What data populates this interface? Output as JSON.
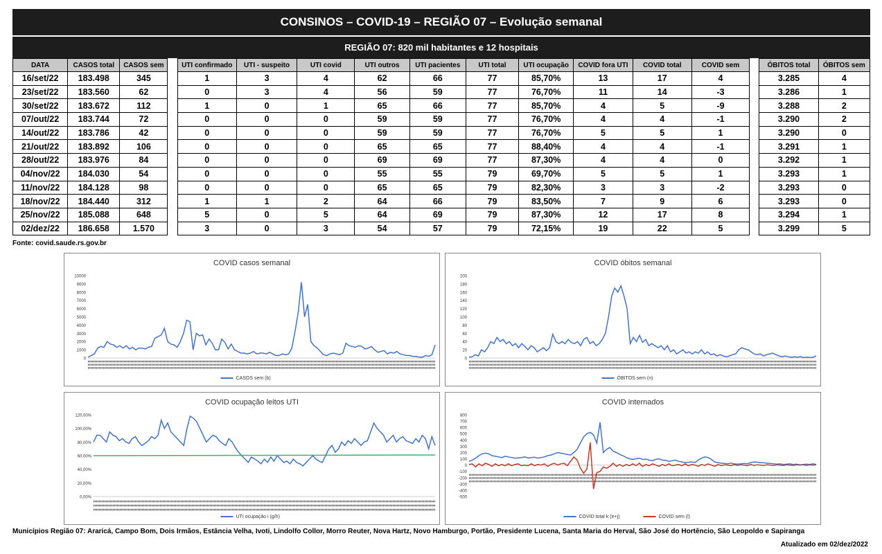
{
  "header": {
    "title": "CONSINOS – COVID-19 – REGIÃO 07 – Evolução semanal",
    "subtitle": "REGIÃO 07: 820 mil habitantes e 12 hospitais"
  },
  "table": {
    "columns": [
      "DATA",
      "CASOS total",
      "CASOS sem",
      "UTI confirmado",
      "UTI - suspeito",
      "UTI covid",
      "UTI outros",
      "UTI pacientes",
      "UTI total",
      "UTI ocupação",
      "COVID fora UTI",
      "COVID total",
      "COVID sem",
      "ÓBITOS total",
      "ÓBITOS sem"
    ],
    "rows": [
      [
        "16/set/22",
        "183.498",
        "345",
        "1",
        "3",
        "4",
        "62",
        "66",
        "77",
        "85,70%",
        "13",
        "17",
        "4",
        "3.285",
        "4"
      ],
      [
        "23/set/22",
        "183.560",
        "62",
        "0",
        "3",
        "4",
        "56",
        "59",
        "77",
        "76,70%",
        "11",
        "14",
        "-3",
        "3.286",
        "1"
      ],
      [
        "30/set/22",
        "183.672",
        "112",
        "1",
        "0",
        "1",
        "65",
        "66",
        "77",
        "85,70%",
        "4",
        "5",
        "-9",
        "3.288",
        "2"
      ],
      [
        "07/out/22",
        "183.744",
        "72",
        "0",
        "0",
        "0",
        "59",
        "59",
        "77",
        "76,70%",
        "4",
        "4",
        "-1",
        "3.290",
        "2"
      ],
      [
        "14/out/22",
        "183.786",
        "42",
        "0",
        "0",
        "0",
        "59",
        "59",
        "77",
        "76,70%",
        "5",
        "5",
        "1",
        "3.290",
        "0"
      ],
      [
        "21/out/22",
        "183.892",
        "106",
        "0",
        "0",
        "0",
        "65",
        "65",
        "77",
        "88,40%",
        "4",
        "4",
        "-1",
        "3.291",
        "1"
      ],
      [
        "28/out/22",
        "183.976",
        "84",
        "0",
        "0",
        "0",
        "69",
        "69",
        "77",
        "87,30%",
        "4",
        "4",
        "0",
        "3.292",
        "1"
      ],
      [
        "04/nov/22",
        "184.030",
        "54",
        "0",
        "0",
        "0",
        "55",
        "55",
        "79",
        "69,70%",
        "5",
        "5",
        "1",
        "3.293",
        "1"
      ],
      [
        "11/nov/22",
        "184.128",
        "98",
        "0",
        "0",
        "0",
        "65",
        "65",
        "79",
        "82,30%",
        "3",
        "3",
        "-2",
        "3.293",
        "0"
      ],
      [
        "18/nov/22",
        "184.440",
        "312",
        "1",
        "1",
        "2",
        "64",
        "66",
        "79",
        "83,50%",
        "7",
        "9",
        "6",
        "3.293",
        "0"
      ],
      [
        "25/nov/22",
        "185.088",
        "648",
        "5",
        "0",
        "5",
        "64",
        "69",
        "79",
        "87,30%",
        "12",
        "17",
        "8",
        "3.294",
        "1"
      ],
      [
        "02/dez/22",
        "186.658",
        "1.570",
        "3",
        "0",
        "3",
        "54",
        "57",
        "79",
        "72,15%",
        "19",
        "22",
        "5",
        "3.299",
        "5"
      ]
    ]
  },
  "source": "Fonte: covid.saude.rs.gov.br",
  "chart_data": [
    {
      "type": "line",
      "title": "COVID casos semanal",
      "ylim": [
        0,
        10000
      ],
      "yticks": [
        "0",
        "1000",
        "2000",
        "3000",
        "4000",
        "5000",
        "6000",
        "7000",
        "8000",
        "9000",
        "10000"
      ],
      "series": [
        {
          "name": "CASOS sem (b)",
          "color": "#4472c4",
          "values": [
            100,
            300,
            500,
            1200,
            1400,
            1300,
            2000,
            1700,
            1600,
            1300,
            1500,
            1200,
            1500,
            1100,
            1300,
            1000,
            1200,
            1200,
            1100,
            1300,
            1400,
            2400,
            2600,
            2800,
            3600,
            2000,
            1700,
            1600,
            1300,
            2000,
            3000,
            4600,
            4400,
            1000,
            3000,
            2700,
            2800,
            1600,
            2300,
            1800,
            1000,
            1000,
            2300,
            1900,
            1100,
            1700,
            1000,
            800,
            600,
            600,
            500,
            600,
            800,
            500,
            600,
            600,
            500,
            700,
            500,
            300,
            300,
            500,
            400,
            500,
            1200,
            3200,
            5500,
            9200,
            5000,
            6500,
            2000,
            1500,
            1200,
            800,
            400,
            300,
            500,
            600,
            500,
            400,
            600,
            1800,
            1500,
            1400,
            1300,
            1500,
            1400,
            1100,
            1200,
            1400,
            1000,
            700,
            800,
            900,
            500,
            700,
            600,
            800,
            500,
            400,
            300,
            300,
            200,
            200,
            100,
            100,
            300,
            200,
            400,
            1600
          ]
        }
      ]
    },
    {
      "type": "line",
      "title": "COVID óbitos semanal",
      "ylim": [
        0,
        200
      ],
      "yticks": [
        "0",
        "20",
        "40",
        "60",
        "80",
        "100",
        "120",
        "140",
        "160",
        "180",
        "200"
      ],
      "series": [
        {
          "name": "ÓBITOS sem (n)",
          "color": "#4472c4",
          "values": [
            2,
            3,
            8,
            5,
            20,
            15,
            25,
            40,
            35,
            50,
            40,
            45,
            35,
            40,
            30,
            35,
            25,
            35,
            28,
            20,
            30,
            25,
            15,
            20,
            25,
            18,
            25,
            58,
            40,
            35,
            40,
            35,
            45,
            38,
            35,
            40,
            30,
            45,
            50,
            35,
            40,
            30,
            35,
            45,
            60,
            100,
            150,
            170,
            160,
            175,
            150,
            120,
            35,
            50,
            40,
            55,
            38,
            45,
            30,
            35,
            30,
            25,
            30,
            20,
            30,
            15,
            20,
            10,
            15,
            20,
            12,
            15,
            10,
            15,
            12,
            20,
            10,
            15,
            8,
            10,
            5,
            8,
            5,
            3,
            5,
            8,
            10,
            20,
            25,
            22,
            20,
            15,
            10,
            8,
            10,
            5,
            8,
            10,
            12,
            8,
            5,
            3,
            5,
            3,
            2,
            3,
            2,
            3,
            1,
            2,
            1,
            2,
            5
          ]
        }
      ]
    },
    {
      "type": "line",
      "title": "COVID ocupação leitos UTI",
      "ylim": [
        0,
        120
      ],
      "yticks": [
        "0,00%",
        "20,00%",
        "40,00%",
        "60,00%",
        "80,00%",
        "100,00%",
        "120,00%"
      ],
      "series": [
        {
          "name": "UTI ocupação i (g/h)",
          "color": "#4472c4",
          "values": [
            80,
            90,
            90,
            85,
            80,
            95,
            90,
            88,
            82,
            85,
            80,
            78,
            85,
            88,
            80,
            75,
            78,
            82,
            88,
            85,
            90,
            112,
            100,
            108,
            95,
            90,
            85,
            80,
            75,
            100,
            118,
            115,
            110,
            100,
            90,
            80,
            85,
            90,
            88,
            82,
            78,
            75,
            85,
            80,
            72,
            65,
            60,
            55,
            50,
            58,
            55,
            52,
            48,
            55,
            50,
            58,
            52,
            60,
            55,
            50,
            52,
            48,
            55,
            50,
            48,
            45,
            50,
            55,
            60,
            55,
            52,
            50,
            60,
            70,
            75,
            65,
            70,
            80,
            75,
            82,
            78,
            85,
            80,
            75,
            80,
            82,
            95,
            108,
            100,
            95,
            90,
            80,
            85,
            90,
            80,
            85,
            88,
            82,
            80,
            78,
            85,
            80,
            90,
            85,
            70,
            88,
            75
          ]
        },
        {
          "name": "",
          "color": "#3cb371",
          "values": [
            60,
            61
          ]
        }
      ]
    },
    {
      "type": "line",
      "title": "COVID internados",
      "ylim": [
        -500,
        800
      ],
      "yticks": [
        "-500",
        "-400",
        "-300",
        "-200",
        "-100",
        "0",
        "100",
        "200",
        "300",
        "400",
        "500",
        "600",
        "700",
        "800"
      ],
      "series": [
        {
          "name": "COVID total k (e+j)",
          "color": "#4472c4",
          "values": [
            60,
            80,
            110,
            150,
            180,
            190,
            180,
            150,
            140,
            130,
            120,
            140,
            130,
            120,
            110,
            115,
            120,
            130,
            115,
            120,
            125,
            110,
            120,
            130,
            150,
            160,
            180,
            200,
            190,
            180,
            170,
            160,
            200,
            250,
            350,
            450,
            500,
            520,
            480,
            350,
            680,
            200,
            250,
            280,
            220,
            200,
            170,
            150,
            120,
            100,
            90,
            100,
            110,
            90,
            95,
            80,
            70,
            90,
            100,
            80,
            75,
            60,
            70,
            80,
            60,
            50,
            40,
            45,
            50,
            40,
            80,
            110,
            130,
            120,
            90,
            50,
            40,
            30,
            25,
            20,
            30,
            20,
            15,
            20,
            25,
            20,
            40,
            50,
            45,
            40,
            35,
            30,
            25,
            20,
            15,
            20,
            10,
            15,
            20,
            10,
            15,
            5,
            10,
            15,
            10,
            20,
            10
          ]
        },
        {
          "name": "COVID sem (l)",
          "color": "#c0392b",
          "values": [
            10,
            20,
            -30,
            20,
            -10,
            30,
            10,
            -20,
            20,
            -10,
            10,
            -10,
            20,
            -10,
            10,
            20,
            -10,
            0,
            -10,
            20,
            -10,
            10,
            0,
            20,
            -20,
            10,
            30,
            0,
            20,
            30,
            -10,
            60,
            130,
            80,
            -50,
            -130,
            -60,
            360,
            -380,
            -120,
            -100,
            -30,
            -50,
            -20,
            30,
            -20,
            10,
            -20,
            10,
            -10,
            20,
            -10,
            30,
            -20,
            10,
            -10,
            20,
            0,
            -20,
            10,
            -10,
            20,
            -10,
            0,
            10,
            -10,
            20,
            -10,
            10,
            0,
            -20,
            10,
            -5,
            20,
            0,
            -20,
            10,
            -10,
            5,
            0,
            -10,
            10,
            -5,
            5,
            0,
            -10,
            10,
            -5,
            5,
            0,
            -5,
            5,
            0,
            -5,
            5,
            0,
            -5,
            5,
            0,
            -5,
            5,
            0,
            5,
            -5,
            5,
            0,
            5
          ]
        }
      ]
    }
  ],
  "footer": {
    "municipios": "Municípios Região 07: Araricá, Campo Bom, Dois Irmãos, Estância Velha, Ivoti, Lindolfo Collor, Morro Reuter, Nova Hartz, Novo Hamburgo, Portão, Presidente Lucena, Santa Maria do Herval,  São José do Hortêncio, São Leopoldo e Sapiranga",
    "atualizado": "Atualizado em 02/dez/2022"
  }
}
